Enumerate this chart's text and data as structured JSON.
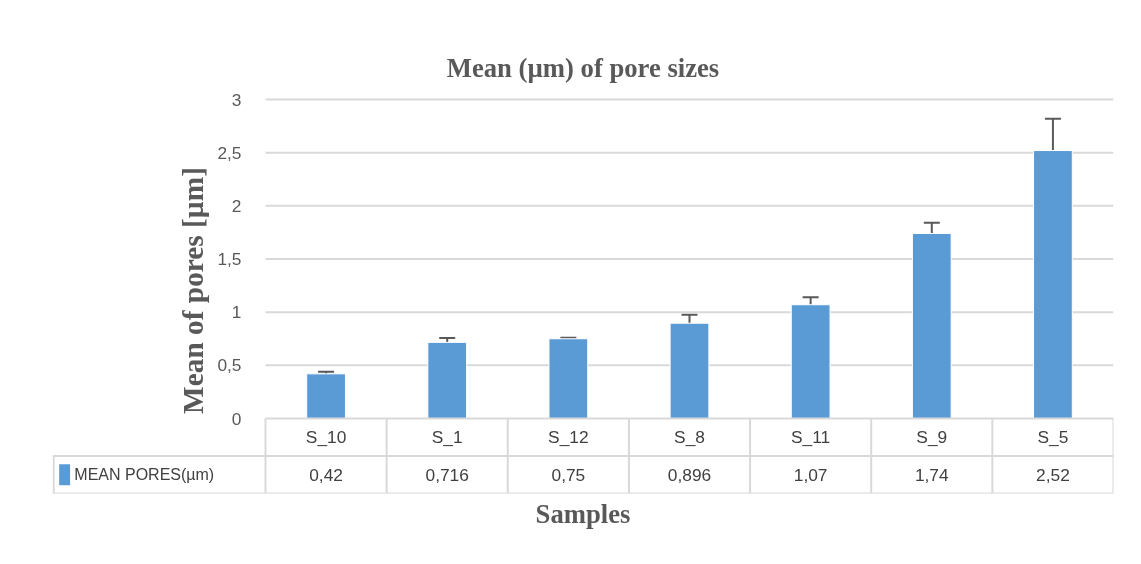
{
  "chart_data": {
    "type": "bar",
    "title": "Mean (µm) of pore sizes",
    "xlabel": "Samples",
    "ylabel": "Mean of pores [µm]",
    "categories": [
      "S_10",
      "S_1",
      "S_12",
      "S_8",
      "S_11",
      "S_9",
      "S_5"
    ],
    "series": [
      {
        "name": "MEAN PORES(µm)",
        "color": "#5b9bd5",
        "values": [
          0.42,
          0.716,
          0.75,
          0.896,
          1.07,
          1.74,
          2.52
        ],
        "errors": [
          0.02,
          0.04,
          0.01,
          0.08,
          0.07,
          0.1,
          0.3
        ],
        "value_labels": [
          "0,42",
          "0,716",
          "0,75",
          "0,896",
          "1,07",
          "1,74",
          "2,52"
        ]
      }
    ],
    "ylim": [
      0,
      3
    ],
    "yticks": [
      0,
      {
        "value": 0.5,
        "label": "0,5"
      },
      1,
      {
        "value": 1.5,
        "label": "1,5"
      },
      2,
      {
        "value": 2.5,
        "label": "2,5"
      },
      3
    ],
    "grid": "y",
    "legend": "bottom"
  }
}
